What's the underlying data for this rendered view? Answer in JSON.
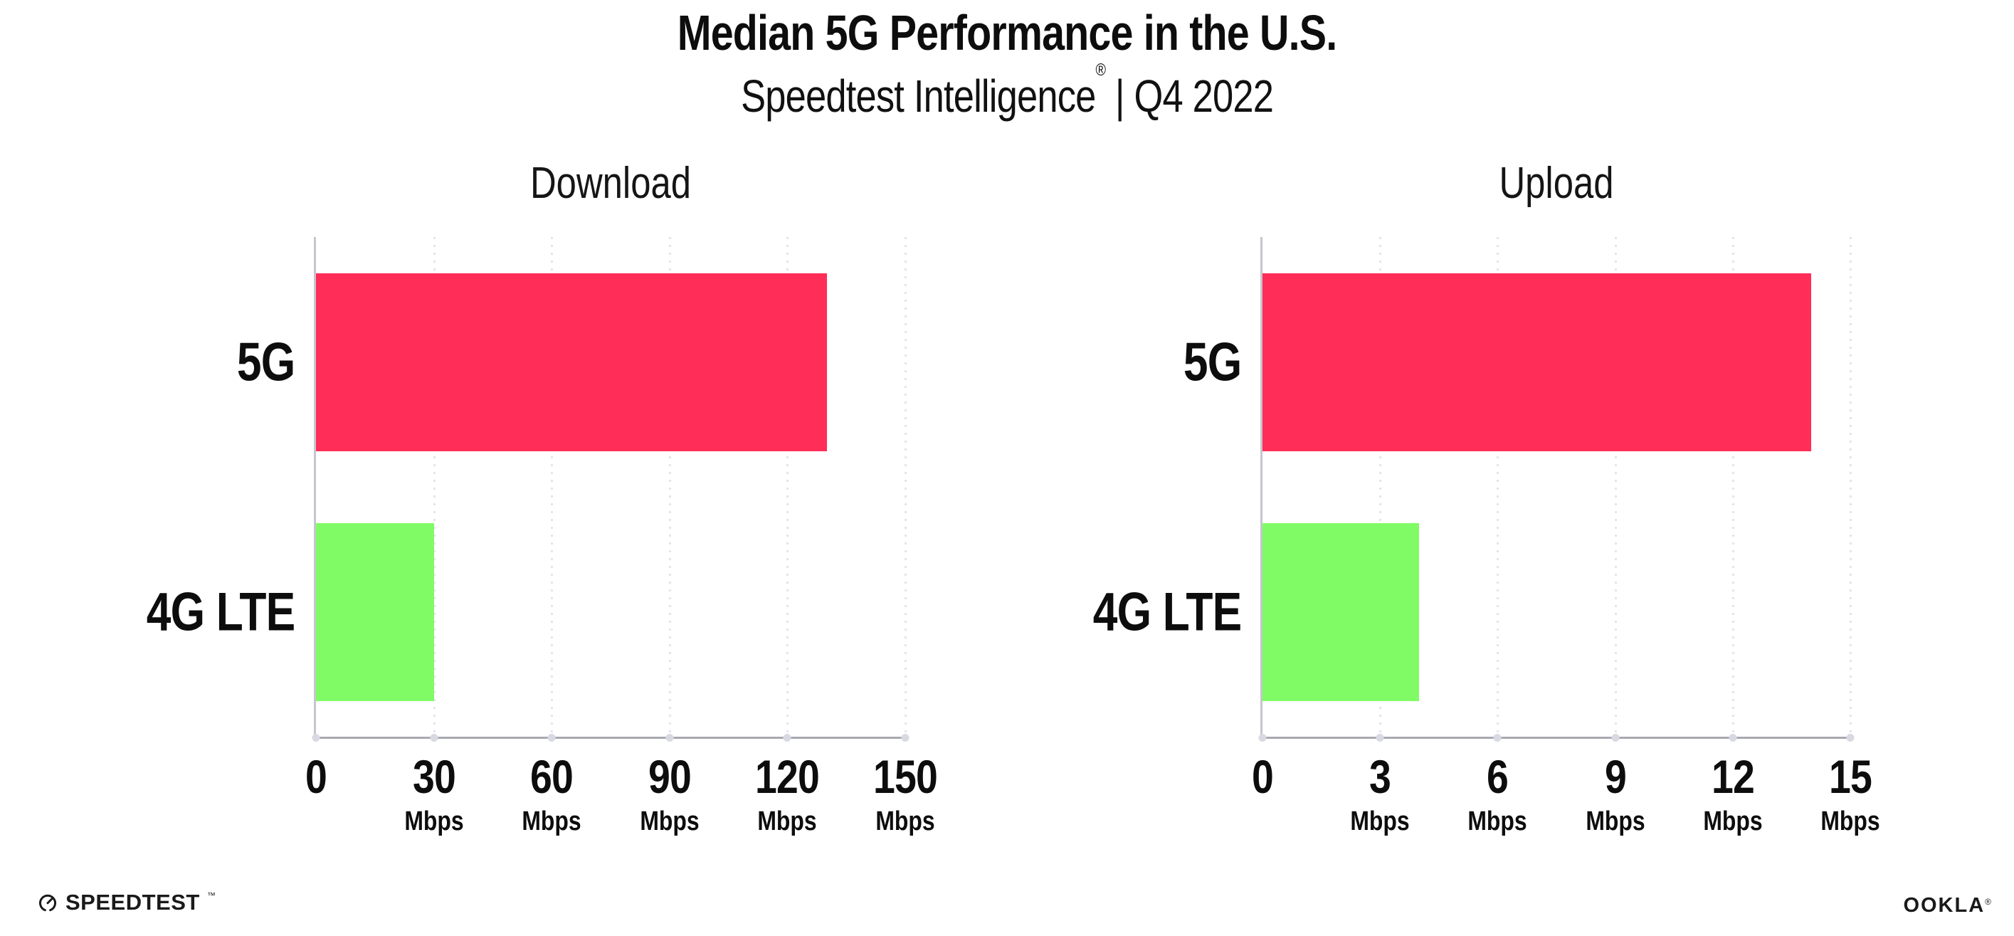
{
  "header": {
    "title": "Median 5G Performance in the U.S.",
    "subtitle": {
      "text": "Speedtest Intelligence",
      "reg": "®",
      "rest": " | Q4 2022"
    }
  },
  "chart_data": [
    {
      "type": "bar",
      "orientation": "horizontal",
      "title": "Download",
      "categories": [
        "5G",
        "4G LTE"
      ],
      "values": [
        130,
        30
      ],
      "unit": "Mbps",
      "xlim": [
        0,
        150
      ],
      "xticks": [
        0,
        30,
        60,
        90,
        120,
        150
      ],
      "bar_colors": [
        "#FF2D58",
        "#80FB66"
      ],
      "grid": "dotted-vertical",
      "legend": "none"
    },
    {
      "type": "bar",
      "orientation": "horizontal",
      "title": "Upload",
      "categories": [
        "5G",
        "4G LTE"
      ],
      "values": [
        14,
        4
      ],
      "unit": "Mbps",
      "xlim": [
        0,
        15
      ],
      "xticks": [
        0,
        3,
        6,
        9,
        12,
        15
      ],
      "bar_colors": [
        "#FF2D58",
        "#80FB66"
      ],
      "grid": "dotted-vertical",
      "legend": "none"
    }
  ],
  "colors": {
    "bar_5g": "#FF2D58",
    "bar_4g_lte": "#80FB66",
    "axis": "#a9a9b1",
    "gridline": "#e4e4ee",
    "text": "#0d0d0d"
  },
  "footer": {
    "speedtest_label": "SPEEDTEST",
    "speedtest_mark": "™",
    "ookla_label": "OOKLA",
    "ookla_mark": "®"
  }
}
